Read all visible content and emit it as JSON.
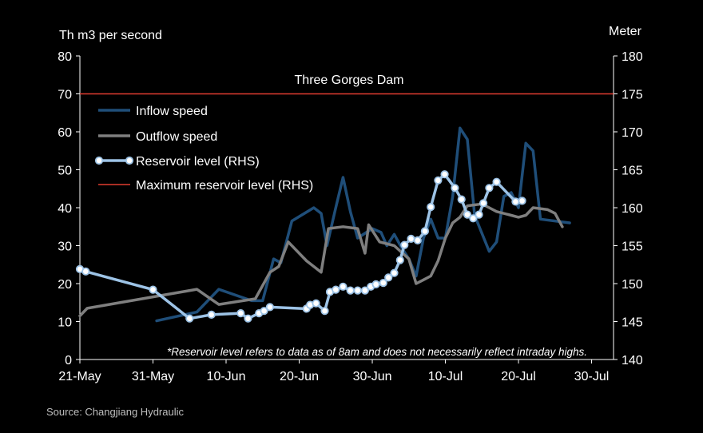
{
  "chart_data": {
    "type": "line",
    "title": "Three Gorges Dam",
    "ylabel_left": "Th m3 per second",
    "ylabel_right": "Meter",
    "x_domain_days": [
      0,
      73
    ],
    "x_ticks": [
      {
        "day": 0,
        "label": "21-May"
      },
      {
        "day": 10,
        "label": "31-May"
      },
      {
        "day": 20,
        "label": "10-Jun"
      },
      {
        "day": 30,
        "label": "20-Jun"
      },
      {
        "day": 40,
        "label": "30-Jun"
      },
      {
        "day": 50,
        "label": "10-Jul"
      },
      {
        "day": 60,
        "label": "20-Jul"
      },
      {
        "day": 70,
        "label": "30-Jul"
      }
    ],
    "y_left": {
      "min": 0,
      "max": 80,
      "ticks": [
        "0",
        "10",
        "20",
        "30",
        "40",
        "50",
        "60",
        "70",
        "80"
      ]
    },
    "y_right": {
      "min": 140,
      "max": 180,
      "ticks": [
        "140",
        "145",
        "150",
        "155",
        "160",
        "165",
        "170",
        "175",
        "180"
      ]
    },
    "series": [
      {
        "name": "Inflow speed",
        "axis": "left",
        "color": "#1f4e79",
        "points": [
          [
            10.5,
            10.2
          ],
          [
            16,
            12.5
          ],
          [
            19,
            18.5
          ],
          [
            23.5,
            15.5
          ],
          [
            25,
            15.5
          ],
          [
            26.5,
            26.5
          ],
          [
            27.5,
            25.5
          ],
          [
            29,
            36.5
          ],
          [
            32,
            40
          ],
          [
            33,
            38.5
          ],
          [
            33.8,
            30
          ],
          [
            35,
            40
          ],
          [
            36,
            48
          ],
          [
            37,
            39
          ],
          [
            38,
            32
          ],
          [
            40,
            34.5
          ],
          [
            41.2,
            33.5
          ],
          [
            42,
            30
          ],
          [
            43,
            33
          ],
          [
            44,
            29.5
          ],
          [
            45,
            26.5
          ],
          [
            46,
            22
          ],
          [
            47,
            32
          ],
          [
            48,
            37
          ],
          [
            49,
            32
          ],
          [
            50,
            32
          ],
          [
            51,
            43
          ],
          [
            52,
            61
          ],
          [
            53,
            58
          ],
          [
            54,
            38
          ],
          [
            56,
            28.5
          ],
          [
            57,
            31
          ],
          [
            58,
            43
          ],
          [
            59,
            44
          ],
          [
            60,
            40
          ],
          [
            61,
            57
          ],
          [
            62,
            55
          ],
          [
            63,
            37
          ],
          [
            67,
            36
          ]
        ]
      },
      {
        "name": "Outflow speed",
        "axis": "left",
        "color": "#7f7f7f",
        "points": [
          [
            0,
            11.5
          ],
          [
            1,
            13.5
          ],
          [
            10,
            16.5
          ],
          [
            16,
            18.5
          ],
          [
            19,
            14.5
          ],
          [
            24,
            16
          ],
          [
            26,
            23
          ],
          [
            27.2,
            24.5
          ],
          [
            28.5,
            31
          ],
          [
            31,
            26
          ],
          [
            33,
            23
          ],
          [
            34,
            34.5
          ],
          [
            36,
            35
          ],
          [
            38,
            34.5
          ],
          [
            39,
            28
          ],
          [
            39.5,
            35.5
          ],
          [
            41,
            31
          ],
          [
            43,
            30
          ],
          [
            45,
            26.5
          ],
          [
            46,
            20
          ],
          [
            47,
            21
          ],
          [
            48,
            22
          ],
          [
            49,
            26
          ],
          [
            50,
            32
          ],
          [
            51,
            36
          ],
          [
            52,
            37.5
          ],
          [
            53,
            40.5
          ],
          [
            55,
            41
          ],
          [
            56,
            40
          ],
          [
            57,
            39
          ],
          [
            59,
            38
          ],
          [
            60,
            37.5
          ],
          [
            61,
            38
          ],
          [
            62,
            40
          ],
          [
            64,
            39.5
          ],
          [
            65,
            38.5
          ],
          [
            66,
            35
          ]
        ]
      },
      {
        "name": "Reservoir level (RHS)",
        "axis": "right",
        "color": "#9dc3e6",
        "points": [
          [
            0,
            151.9
          ],
          [
            0.8,
            151.6
          ],
          [
            10,
            149.2
          ],
          [
            15,
            145.4
          ],
          [
            18,
            145.9
          ],
          [
            22,
            146.1
          ],
          [
            23,
            145.4
          ],
          [
            24.5,
            146.1
          ],
          [
            25.2,
            146.4
          ],
          [
            26,
            146.9
          ],
          [
            31,
            146.7
          ],
          [
            31.5,
            147.2
          ],
          [
            32.3,
            147.4
          ],
          [
            33.5,
            146.4
          ],
          [
            34.2,
            148.9
          ],
          [
            35,
            149.2
          ],
          [
            36,
            149.6
          ],
          [
            37,
            149.1
          ],
          [
            38,
            149.1
          ],
          [
            39,
            149.1
          ],
          [
            39.8,
            149.6
          ],
          [
            40.5,
            149.9
          ],
          [
            41.5,
            150.1
          ],
          [
            42.2,
            150.8
          ],
          [
            43,
            151.4
          ],
          [
            43.8,
            153.1
          ],
          [
            44.4,
            155.1
          ],
          [
            45.3,
            155.9
          ],
          [
            46.2,
            155.7
          ],
          [
            47.2,
            156.9
          ],
          [
            48,
            160.1
          ],
          [
            49,
            163.6
          ],
          [
            49.9,
            164.4
          ],
          [
            51.3,
            162.6
          ],
          [
            52.2,
            161.1
          ],
          [
            53,
            159.1
          ],
          [
            53.8,
            158.6
          ],
          [
            54.6,
            159.1
          ],
          [
            55.2,
            160.6
          ],
          [
            56,
            162.6
          ],
          [
            57,
            163.4
          ],
          [
            59.6,
            160.8
          ],
          [
            60.5,
            160.9
          ]
        ]
      },
      {
        "name": "Maximum reservoir level (RHS)",
        "axis": "right",
        "color": "#e03c31",
        "value": 175
      }
    ],
    "legend": [
      "Inflow speed",
      "Outflow speed",
      "Reservoir level (RHS)",
      "Maximum reservoir level (RHS)"
    ],
    "legend_position": "top-left",
    "annotation": "*Reservoir level refers to data as of 8am and does not necessarily reflect intraday highs."
  },
  "source": "Source: Changjiang Hydraulic"
}
